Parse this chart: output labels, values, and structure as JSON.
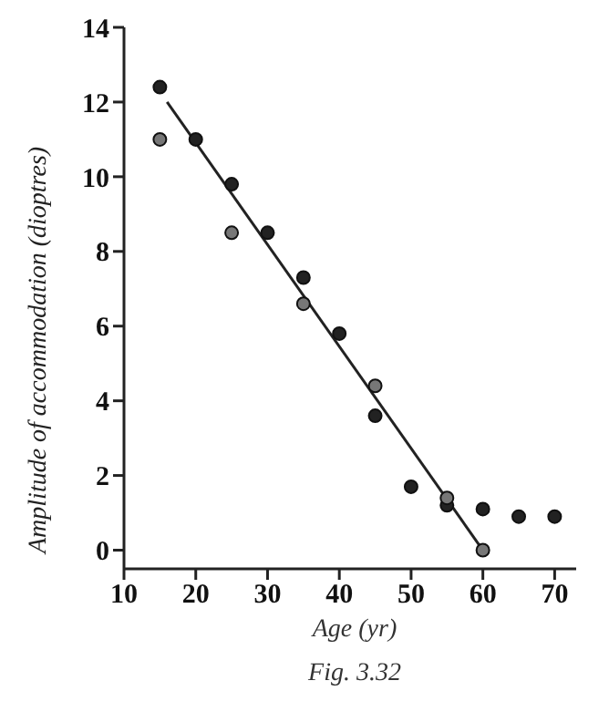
{
  "chart_data": {
    "type": "scatter",
    "xlabel": "Age (yr)",
    "ylabel": "Amplitude of accommodation (dioptres)",
    "annotations": [
      "Fig. 3.32"
    ],
    "xlim": [
      10,
      73
    ],
    "xticks": [
      10,
      20,
      30,
      40,
      50,
      60,
      70
    ],
    "ylim": [
      -0.5,
      14
    ],
    "yticks": [
      0,
      2,
      4,
      6,
      8,
      10,
      12,
      14
    ],
    "grid": false,
    "legend": false,
    "marker": "circle",
    "series": [
      {
        "color": "#222222",
        "x": [
          15,
          20,
          25,
          30,
          35,
          40,
          45,
          50,
          55,
          60,
          65,
          70
        ],
        "values": [
          12.4,
          11,
          9.8,
          8.5,
          7.3,
          5.8,
          3.6,
          1.7,
          1.2,
          1.1,
          0.9,
          0.9
        ]
      },
      {
        "color": "#777777",
        "x": [
          15,
          25,
          35,
          45,
          55,
          60
        ],
        "values": [
          11,
          8.5,
          6.6,
          4.4,
          1.4,
          0
        ]
      },
      {
        "type": "line",
        "color": "#222222",
        "marker": "none",
        "line_style": "solid",
        "x": [
          16,
          60
        ],
        "values": [
          12,
          0
        ]
      }
    ]
  }
}
